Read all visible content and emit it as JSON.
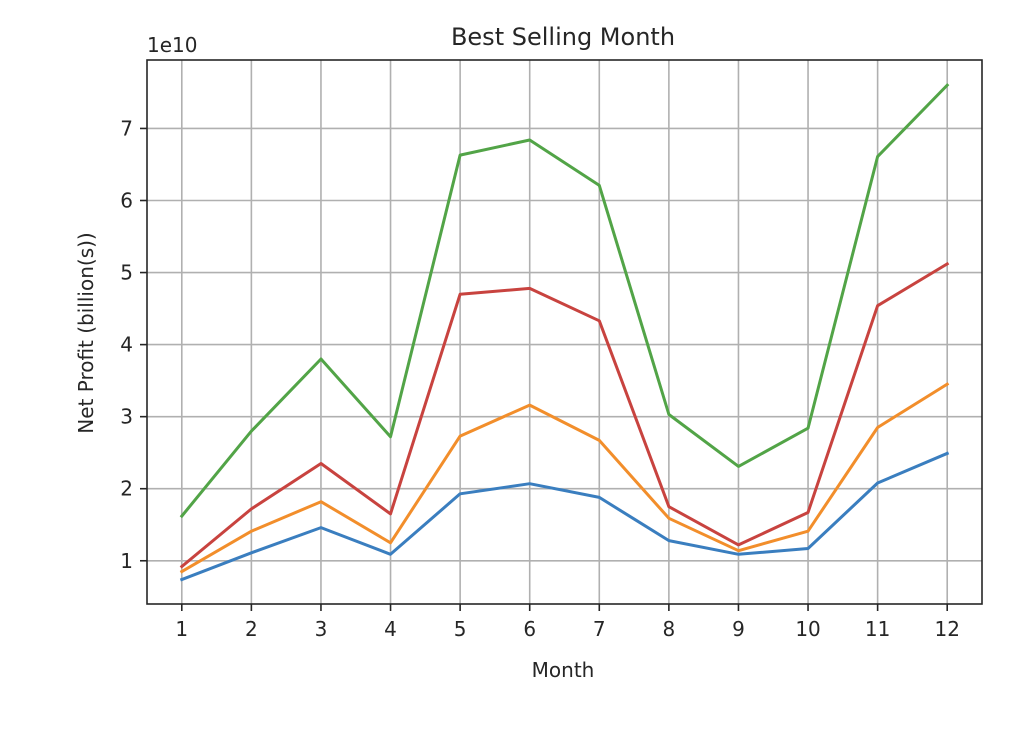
{
  "chart_data": {
    "type": "line",
    "title": "Best Selling Month",
    "xlabel": "Month",
    "ylabel": "Net Profit (billion(s))",
    "y_offset_label": "1e10",
    "x": [
      1,
      2,
      3,
      4,
      5,
      6,
      7,
      8,
      9,
      10,
      11,
      12
    ],
    "x_tick_labels": [
      "1",
      "2",
      "3",
      "4",
      "5",
      "6",
      "7",
      "8",
      "9",
      "10",
      "11",
      "12"
    ],
    "y_ticks": [
      1,
      2,
      3,
      4,
      5,
      6,
      7
    ],
    "y_tick_labels": [
      "1",
      "2",
      "3",
      "4",
      "5",
      "6",
      "7"
    ],
    "xlim": [
      0.5,
      12.5
    ],
    "ylim": [
      0.4,
      7.95
    ],
    "grid": true,
    "legend": false,
    "series": [
      {
        "color": "#3a7ebf",
        "values": [
          0.74,
          1.11,
          1.46,
          1.09,
          1.93,
          2.07,
          1.88,
          1.28,
          1.09,
          1.17,
          2.08,
          2.49
        ]
      },
      {
        "color": "#f28e2b",
        "values": [
          0.85,
          1.41,
          1.82,
          1.25,
          2.73,
          3.16,
          2.67,
          1.59,
          1.14,
          1.41,
          2.85,
          3.45
        ]
      },
      {
        "color": "#c8433f",
        "values": [
          0.92,
          1.72,
          2.35,
          1.65,
          4.7,
          4.78,
          4.33,
          1.75,
          1.22,
          1.67,
          4.54,
          5.12
        ]
      },
      {
        "color": "#52a447",
        "values": [
          1.62,
          2.8,
          3.8,
          2.72,
          6.63,
          6.84,
          6.21,
          3.03,
          2.31,
          2.84,
          6.61,
          7.6
        ]
      }
    ]
  }
}
